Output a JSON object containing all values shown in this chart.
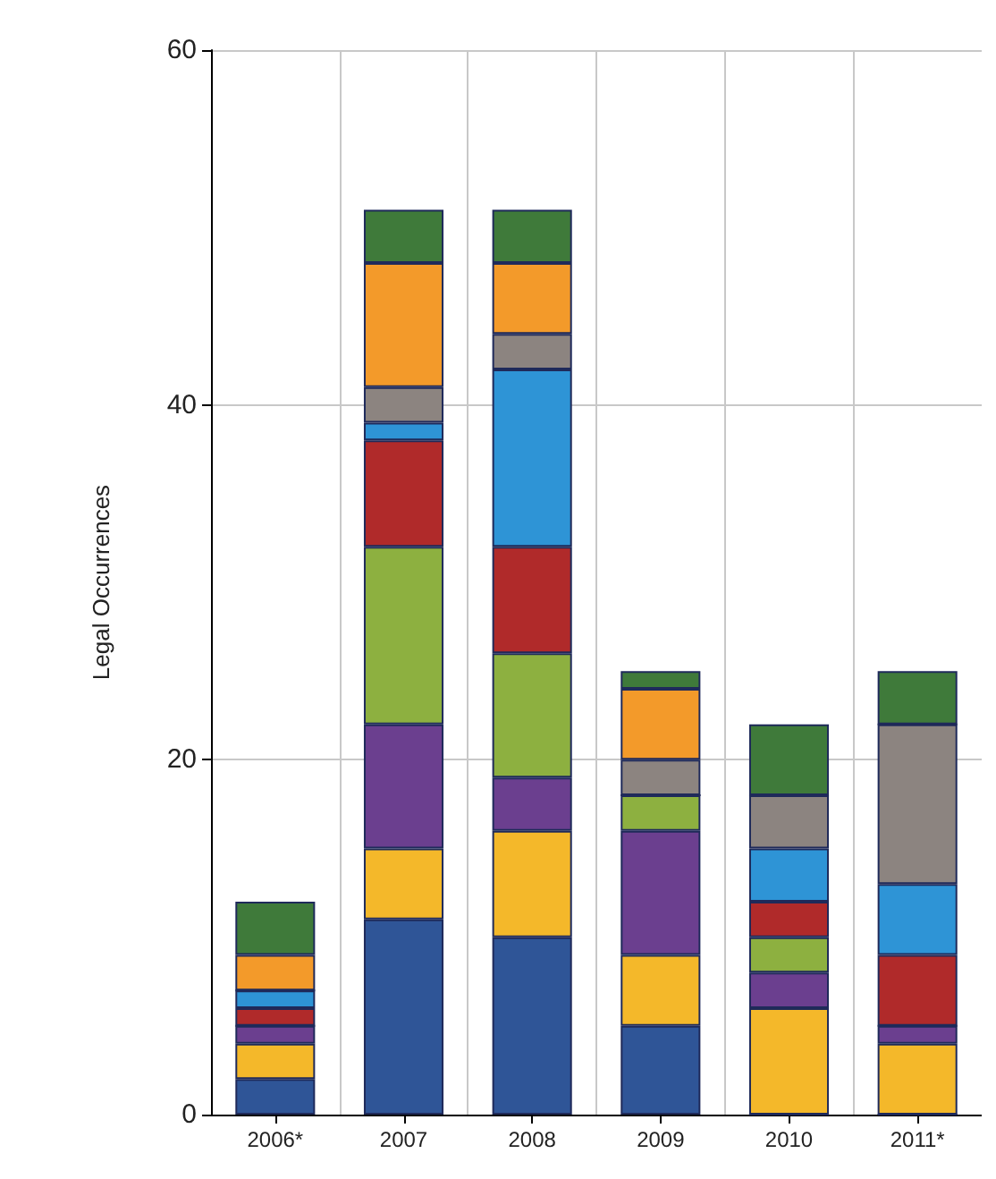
{
  "chart_data": {
    "type": "bar",
    "stacked": true,
    "ylabel": "Legal Occurrences",
    "categories": [
      "2006*",
      "2007",
      "2008",
      "2009",
      "2010",
      "2011*"
    ],
    "series": [
      {
        "color": "#2f5597",
        "values": [
          2,
          11,
          10,
          5,
          0,
          0
        ]
      },
      {
        "color": "#f4b82a",
        "values": [
          2,
          4,
          6,
          4,
          6,
          4
        ]
      },
      {
        "color": "#6b3f8f",
        "values": [
          1,
          7,
          3,
          7,
          2,
          1
        ]
      },
      {
        "color": "#8db040",
        "values": [
          0,
          10,
          7,
          2,
          2,
          0
        ]
      },
      {
        "color": "#b02a2a",
        "values": [
          1,
          6,
          6,
          0,
          2,
          4
        ]
      },
      {
        "color": "#2e94d6",
        "values": [
          1,
          1,
          10,
          0,
          3,
          4
        ]
      },
      {
        "color": "#8c8480",
        "values": [
          0,
          2,
          2,
          2,
          3,
          9
        ]
      },
      {
        "color": "#f39a2a",
        "values": [
          2,
          7,
          4,
          4,
          0,
          0
        ]
      },
      {
        "color": "#3f7a3a",
        "values": [
          3,
          3,
          3,
          1,
          4,
          3
        ]
      }
    ],
    "ylim": [
      0,
      60
    ],
    "yticks": [
      0,
      20,
      40,
      60
    ],
    "grid": true
  }
}
